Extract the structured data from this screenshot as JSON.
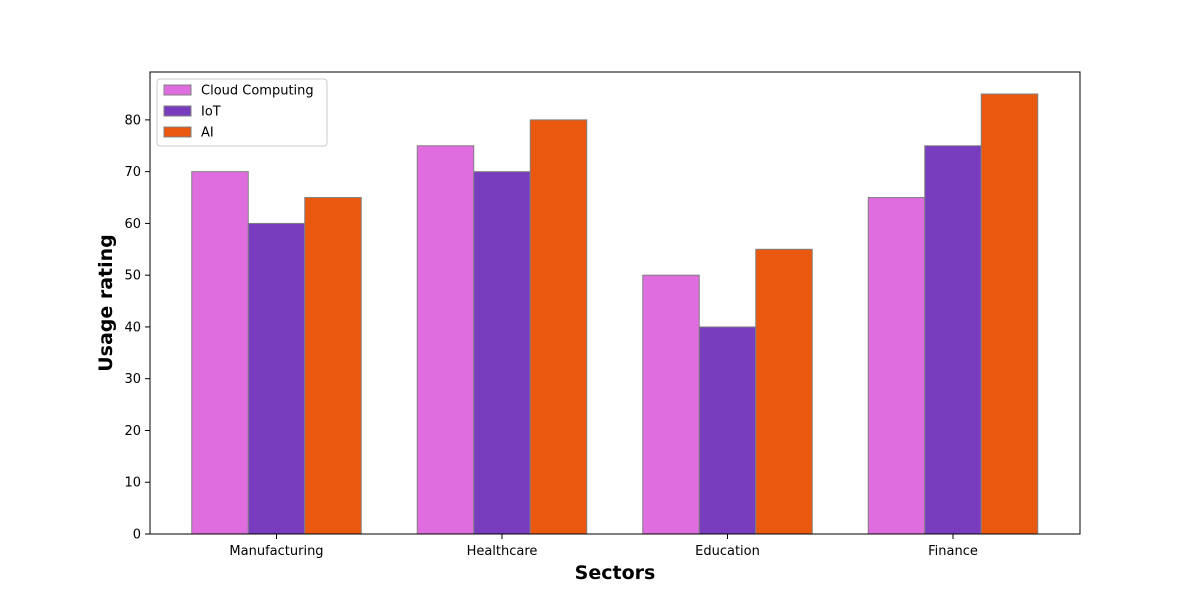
{
  "chart_data": {
    "type": "bar",
    "title": "",
    "xlabel": "Sectors",
    "ylabel": "Usage rating",
    "categories": [
      "Manufacturing",
      "Healthcare",
      "Education",
      "Finance"
    ],
    "series": [
      {
        "name": "Cloud Computing",
        "values": [
          70,
          75,
          50,
          65
        ],
        "color": "#df6ddf"
      },
      {
        "name": "IoT",
        "values": [
          60,
          70,
          40,
          75
        ],
        "color": "#783dbe"
      },
      {
        "name": "AI",
        "values": [
          65,
          80,
          55,
          85
        ],
        "color": "#ea570f"
      }
    ],
    "ylim": [
      0,
      89.25
    ],
    "yticks": [
      0,
      10,
      20,
      30,
      40,
      50,
      60,
      70,
      80
    ],
    "ytick_labels": [
      "0",
      "10",
      "20",
      "30",
      "40",
      "50",
      "60",
      "70",
      "80"
    ],
    "grid": false,
    "legend_position": "top-left",
    "bar_edge_color": "#808080"
  }
}
